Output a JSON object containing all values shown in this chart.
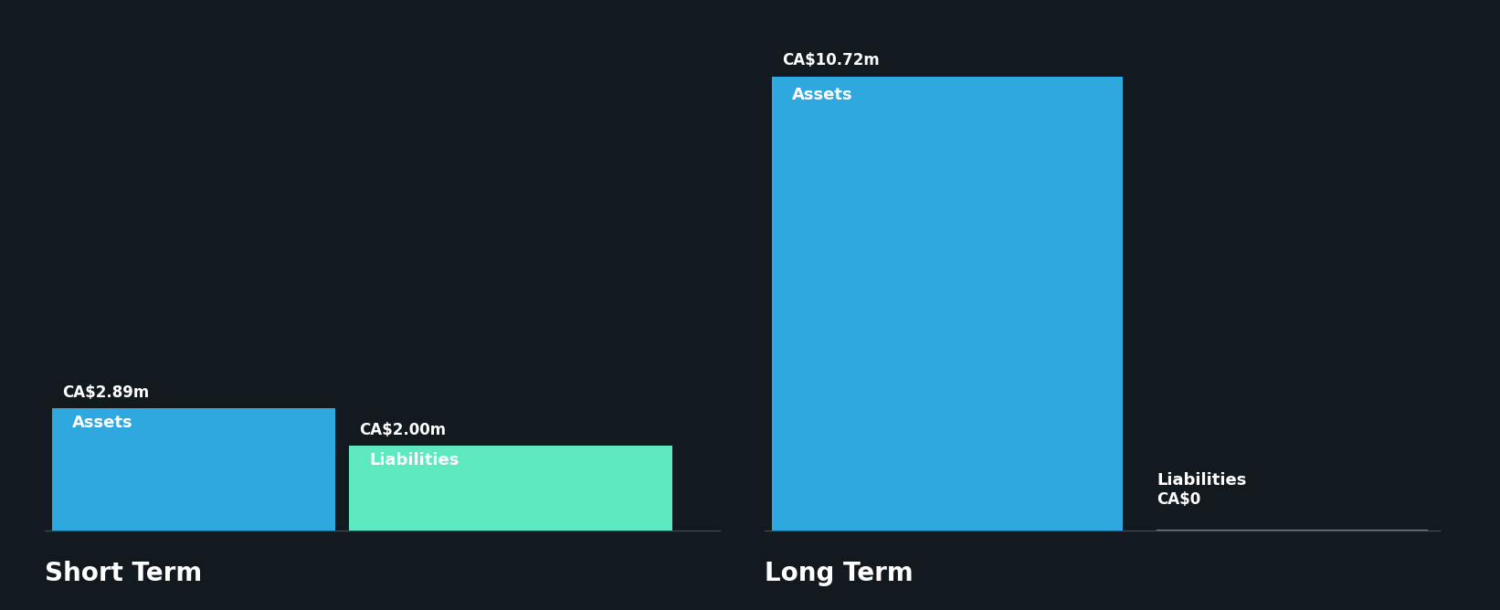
{
  "background_color": "#12191f",
  "short_term": {
    "assets_value": 2.89,
    "liabilities_value": 2.0,
    "assets_label": "Assets",
    "liabilities_label": "Liabilities",
    "assets_amount_label": "CA$2.89m",
    "liabilities_amount_label": "CA$2.00m",
    "assets_color": "#2fa8e0",
    "liabilities_color": "#5de8c0",
    "title": "Short Term"
  },
  "long_term": {
    "assets_value": 10.72,
    "liabilities_value": 0.0,
    "assets_label": "Assets",
    "liabilities_label": "Liabilities",
    "assets_amount_label": "CA$10.72m",
    "liabilities_amount_label": "CA$0",
    "assets_color": "#2fa8e0",
    "liabilities_color": "#5de8c0",
    "title": "Long Term"
  },
  "y_max": 11.8,
  "text_color_white": "#ffffff",
  "title_fontsize": 20,
  "label_fontsize": 13,
  "amount_fontsize": 12
}
